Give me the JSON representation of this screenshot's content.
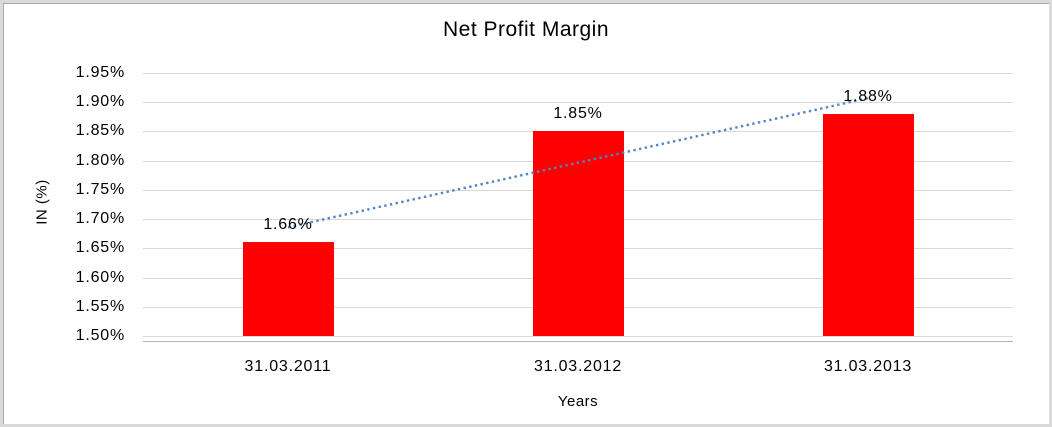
{
  "chart_data": {
    "type": "bar",
    "title": "Net Profit Margin",
    "xlabel": "Years",
    "ylabel": "IN (%)",
    "categories": [
      "31.03.2011",
      "31.03.2012",
      "31.03.2013"
    ],
    "values": [
      1.66,
      1.85,
      1.88
    ],
    "data_labels": [
      "1.66%",
      "1.85%",
      "1.88%"
    ],
    "y_ticks": [
      "1.95%",
      "1.90%",
      "1.85%",
      "1.80%",
      "1.75%",
      "1.70%",
      "1.65%",
      "1.60%",
      "1.55%",
      "1.50%"
    ],
    "y_min": 1.5,
    "y_max": 1.95,
    "y_step": 0.05,
    "ylim": [
      1.5,
      1.95
    ],
    "grid": true,
    "legend": "none",
    "bar_color": "#FF0000",
    "gridline_color": "#d9d9d9",
    "axis_line_color": "#b3b3b3",
    "trendline": {
      "style": "dotted",
      "color": "#4F86C6",
      "start_value": 1.686,
      "end_value": 1.907
    }
  }
}
